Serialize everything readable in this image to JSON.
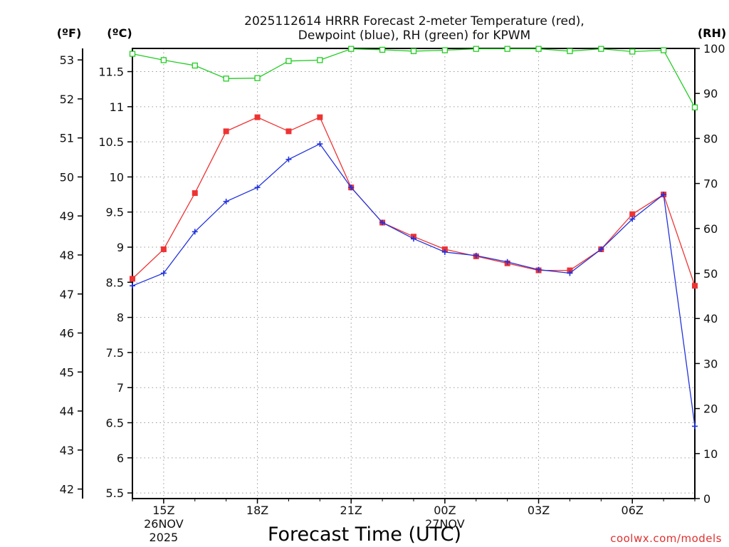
{
  "chart_data": {
    "type": "line",
    "title_lines": [
      "2025112614 HRRR Forecast 2-meter Temperature (red),",
      "Dewpoint (blue), RH (green) for KPWM"
    ],
    "xlabel": "Forecast Time (UTC)",
    "credit": "coolwx.com/models",
    "unit_labels": {
      "fahrenheit": "(ºF)",
      "celsius": "(ºC)",
      "rh": "(RH)"
    },
    "x_hours": [
      14,
      15,
      16,
      17,
      18,
      19,
      20,
      21,
      22,
      23,
      24,
      25,
      26,
      27,
      28,
      29,
      30,
      31,
      32
    ],
    "x_range": [
      14,
      32
    ],
    "x_ticks": [
      {
        "hour": 15,
        "label": "15Z",
        "date": "26NOV",
        "year": "2025"
      },
      {
        "hour": 18,
        "label": "18Z",
        "date": "",
        "year": ""
      },
      {
        "hour": 21,
        "label": "21Z",
        "date": "",
        "year": ""
      },
      {
        "hour": 24,
        "label": "00Z",
        "date": "27NOV",
        "year": ""
      },
      {
        "hour": 27,
        "label": "03Z",
        "date": "",
        "year": ""
      },
      {
        "hour": 30,
        "label": "06Z",
        "date": "",
        "year": ""
      }
    ],
    "celsius_axis": {
      "range": [
        5.42,
        11.83
      ],
      "ticks": [
        "5.5",
        "6",
        "6.5",
        "7",
        "7.5",
        "8",
        "8.5",
        "9",
        "9.5",
        "10",
        "10.5",
        "11",
        "11.5"
      ]
    },
    "fahrenheit_axis": {
      "ticks": [
        "42",
        "43",
        "44",
        "45",
        "46",
        "47",
        "48",
        "49",
        "50",
        "51",
        "52",
        "53"
      ]
    },
    "rh_axis": {
      "range": [
        0,
        100
      ],
      "ticks": [
        "0",
        "10",
        "20",
        "30",
        "40",
        "50",
        "60",
        "70",
        "80",
        "90",
        "100"
      ]
    },
    "series": [
      {
        "name": "2-meter Temperature",
        "color": "#ee3333",
        "axis": "celsius",
        "marker": "filled-square",
        "values": [
          8.55,
          8.97,
          9.77,
          10.65,
          10.85,
          10.65,
          10.85,
          9.85,
          9.35,
          9.15,
          8.97,
          8.87,
          8.77,
          8.67,
          8.67,
          8.97,
          9.47,
          9.75,
          8.45
        ]
      },
      {
        "name": "Dewpoint",
        "color": "#2233dd",
        "axis": "celsius",
        "marker": "plus",
        "values": [
          8.45,
          8.63,
          9.22,
          9.65,
          9.85,
          10.25,
          10.47,
          9.85,
          9.35,
          9.12,
          8.93,
          8.88,
          8.79,
          8.68,
          8.63,
          8.97,
          9.4,
          9.75,
          6.45
        ]
      },
      {
        "name": "RH",
        "color": "#22cc22",
        "axis": "rh",
        "marker": "open-square",
        "values": [
          98.8,
          97.4,
          96.2,
          93.3,
          93.4,
          97.2,
          97.4,
          99.9,
          99.7,
          99.4,
          99.6,
          99.9,
          99.9,
          99.9,
          99.4,
          99.9,
          99.3,
          99.6,
          86.9
        ]
      }
    ]
  }
}
